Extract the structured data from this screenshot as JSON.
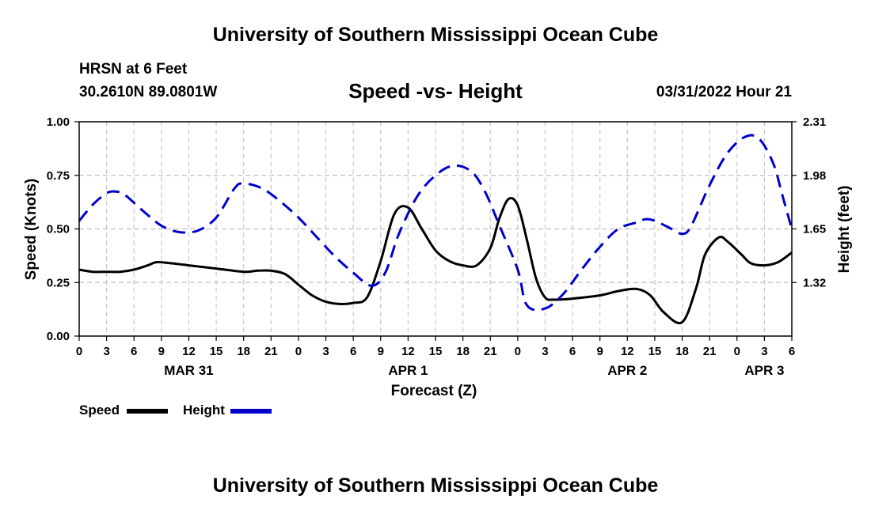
{
  "header": {
    "title_top": "University of Southern Mississippi Ocean Cube",
    "title_bottom": "University of Southern Mississippi Ocean Cube",
    "station": "HRSN at 6 Feet",
    "coords": "30.2610N  89.0801W",
    "subtitle": "Speed -vs- Height",
    "datetime": "03/31/2022 Hour 21"
  },
  "legend": {
    "speed_label": "Speed",
    "height_label": "Height"
  },
  "chart_data": {
    "type": "line",
    "title": "Speed -vs- Height",
    "xlabel": "Forecast (Z)",
    "ylabel_left": "Speed (Knots)",
    "ylabel_right": "Height (feet)",
    "x_range_hours": [
      0,
      78
    ],
    "x_tick_step_hours": 3,
    "x_tick_labels": [
      "0",
      "3",
      "6",
      "9",
      "12",
      "15",
      "18",
      "21",
      "0",
      "3",
      "6",
      "9",
      "12",
      "15",
      "18",
      "21",
      "0",
      "3",
      "6",
      "9",
      "12",
      "15",
      "18",
      "21",
      "0",
      "3",
      "6"
    ],
    "date_labels": [
      {
        "label": "MAR 31",
        "hour": 12
      },
      {
        "label": "APR 1",
        "hour": 36
      },
      {
        "label": "APR 2",
        "hour": 60
      },
      {
        "label": "APR 3",
        "hour": 75
      }
    ],
    "ylim_left": [
      0,
      1
    ],
    "yticks_left": [
      "0.00",
      "0.25",
      "0.50",
      "0.75",
      "1.00"
    ],
    "ylim_right": [
      0.99,
      2.31
    ],
    "yticks_right": [
      {
        "label": "1.32",
        "value": 1.32
      },
      {
        "label": "1.65",
        "value": 1.65
      },
      {
        "label": "1.98",
        "value": 1.98
      },
      {
        "label": "2.31",
        "value": 2.31
      }
    ],
    "grid": true,
    "series": [
      {
        "name": "Speed",
        "axis": "left",
        "color": "#000000",
        "style": "solid",
        "x": [
          0,
          1.5,
          3,
          4.5,
          6,
          7.5,
          8.5,
          10,
          12,
          15,
          18,
          19.5,
          21,
          22.5,
          24,
          25.5,
          27,
          28.5,
          30,
          31.5,
          33,
          34.5,
          36,
          37.5,
          39,
          40.5,
          42,
          43.5,
          45,
          46,
          47,
          48,
          49,
          50,
          51,
          52,
          54,
          57,
          59,
          61,
          62.5,
          64,
          66,
          67.5,
          68.5,
          70,
          71,
          72.5,
          73.5,
          75,
          76.5,
          78
        ],
        "values": [
          0.31,
          0.3,
          0.3,
          0.3,
          0.31,
          0.33,
          0.345,
          0.34,
          0.33,
          0.315,
          0.3,
          0.305,
          0.305,
          0.29,
          0.24,
          0.19,
          0.16,
          0.15,
          0.155,
          0.18,
          0.35,
          0.57,
          0.6,
          0.5,
          0.4,
          0.35,
          0.33,
          0.33,
          0.41,
          0.55,
          0.64,
          0.61,
          0.45,
          0.27,
          0.18,
          0.17,
          0.175,
          0.19,
          0.21,
          0.22,
          0.19,
          0.11,
          0.065,
          0.22,
          0.38,
          0.46,
          0.44,
          0.38,
          0.34,
          0.33,
          0.345,
          0.39
        ]
      },
      {
        "name": "Height",
        "axis": "right",
        "color": "#0000cc",
        "style": "dashed",
        "x": [
          0,
          1.5,
          3,
          4,
          5,
          7,
          9,
          11,
          13,
          15,
          17,
          18,
          20,
          22,
          24,
          26,
          28,
          30,
          32,
          33.5,
          35,
          37,
          39,
          41,
          43,
          44.5,
          46,
          48,
          49,
          51,
          53,
          55,
          57,
          59,
          61,
          62,
          63,
          64.5,
          66,
          67,
          69,
          71,
          73,
          74.5,
          76,
          77,
          78
        ],
        "values": [
          1.7,
          1.8,
          1.87,
          1.88,
          1.86,
          1.76,
          1.67,
          1.63,
          1.64,
          1.72,
          1.9,
          1.93,
          1.9,
          1.82,
          1.72,
          1.6,
          1.48,
          1.38,
          1.3,
          1.38,
          1.62,
          1.85,
          1.98,
          2.04,
          2.0,
          1.87,
          1.67,
          1.4,
          1.18,
          1.16,
          1.25,
          1.4,
          1.54,
          1.65,
          1.69,
          1.71,
          1.7,
          1.66,
          1.62,
          1.67,
          1.92,
          2.12,
          2.22,
          2.2,
          2.05,
          1.85,
          1.65
        ]
      }
    ]
  }
}
